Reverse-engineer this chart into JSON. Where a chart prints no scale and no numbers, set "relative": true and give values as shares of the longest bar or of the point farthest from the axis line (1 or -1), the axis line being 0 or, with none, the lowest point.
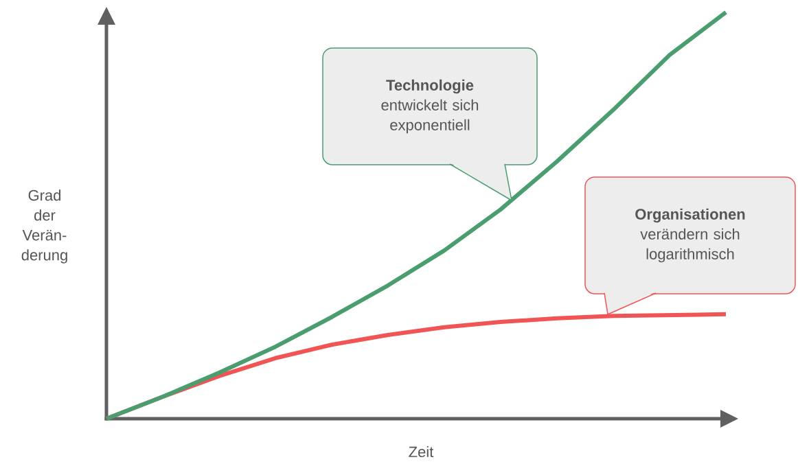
{
  "chart_data": {
    "type": "line",
    "relative": true,
    "xlabel": "Zeit",
    "ylabel": "Grad der Verän-derung",
    "categories": [
      null,
      null,
      null,
      null,
      null,
      null,
      null,
      null,
      null,
      null,
      null,
      null
    ],
    "series": [
      {
        "color": "#4a9d6f",
        "values": [
          0,
          0.054,
          0.113,
          0.177,
          0.25,
          0.328,
          0.414,
          0.515,
          0.633,
          0.76,
          0.895,
          1.0
        ]
      },
      {
        "color": "#f15454",
        "values": [
          0,
          0.054,
          0.105,
          0.149,
          0.182,
          0.206,
          0.225,
          0.238,
          0.247,
          0.253,
          0.255,
          0.257
        ]
      }
    ],
    "annotations": [
      "**Technologie** entwickelt sich exponentiell",
      "**Organisationen** verändern sich logarithmisch"
    ]
  }
}
